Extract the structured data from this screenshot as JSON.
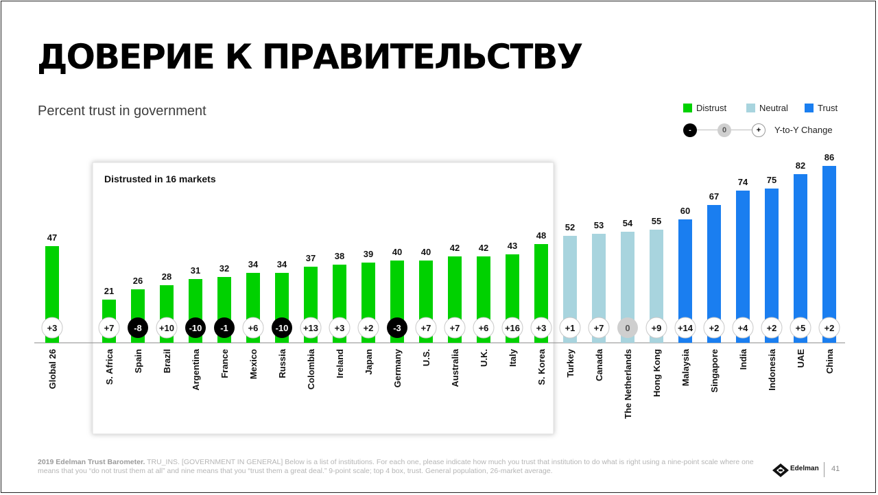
{
  "title": "ДОВЕРИЕ К ПРАВИТЕЛЬСТВУ",
  "subtitle": "Percent trust in government",
  "legend": {
    "distrust": "Distrust",
    "neutral": "Neutral",
    "trust": "Trust",
    "yoy_neg": "-",
    "yoy_zero": "0",
    "yoy_pos": "+",
    "yoy_label": "Y-to-Y Change"
  },
  "colors": {
    "distrust": "#00d100",
    "neutral": "#a8d4de",
    "trust": "#1a7ef0",
    "negative_change": "#000000",
    "zero_change": "#cfcfcf"
  },
  "chart_data": {
    "type": "bar",
    "title": "Percent trust in government",
    "highlight_box_label": "Distrusted in 16 markets",
    "categories": [
      "Global 26",
      "S. Africa",
      "Spain",
      "Brazil",
      "Argentina",
      "France",
      "Mexico",
      "Russia",
      "Colombia",
      "Ireland",
      "Japan",
      "Germany",
      "U.S.",
      "Australia",
      "U.K.",
      "Italy",
      "S. Korea",
      "Turkey",
      "Canada",
      "The Netherlands",
      "Hong Kong",
      "Malaysia",
      "Singapore",
      "India",
      "Indonesia",
      "UAE",
      "China"
    ],
    "values": [
      47,
      21,
      26,
      28,
      31,
      32,
      34,
      34,
      37,
      38,
      39,
      40,
      40,
      42,
      42,
      43,
      48,
      52,
      53,
      54,
      55,
      60,
      67,
      74,
      75,
      82,
      86
    ],
    "groups": [
      "distrust",
      "distrust",
      "distrust",
      "distrust",
      "distrust",
      "distrust",
      "distrust",
      "distrust",
      "distrust",
      "distrust",
      "distrust",
      "distrust",
      "distrust",
      "distrust",
      "distrust",
      "distrust",
      "distrust",
      "neutral",
      "neutral",
      "neutral",
      "neutral",
      "trust",
      "trust",
      "trust",
      "trust",
      "trust",
      "trust"
    ],
    "yoy_change": [
      "+3",
      "+7",
      "-8",
      "+10",
      "-10",
      "-1",
      "+6",
      "-10",
      "+13",
      "+3",
      "+2",
      "-3",
      "+7",
      "+7",
      "+6",
      "+16",
      "+3",
      "+1",
      "+7",
      "0",
      "+9",
      "+14",
      "+2",
      "+4",
      "+2",
      "+5",
      "+2"
    ],
    "ylim": [
      0,
      100
    ],
    "grid": false,
    "legend_position": "top-right"
  },
  "footer": {
    "source": "2019 Edelman Trust Barometer.",
    "note": "TRU_INS. [GOVERNMENT IN GENERAL] Below is a list of institutions. For each one, please indicate how much you trust that institution to do what is right using a nine-point scale where one means that you “do not trust them at all” and nine means that you “trust them a great deal.” 9-point scale; top 4 box, trust. General population, 26-market average.",
    "brand": "Edelman",
    "page_number": "41"
  }
}
